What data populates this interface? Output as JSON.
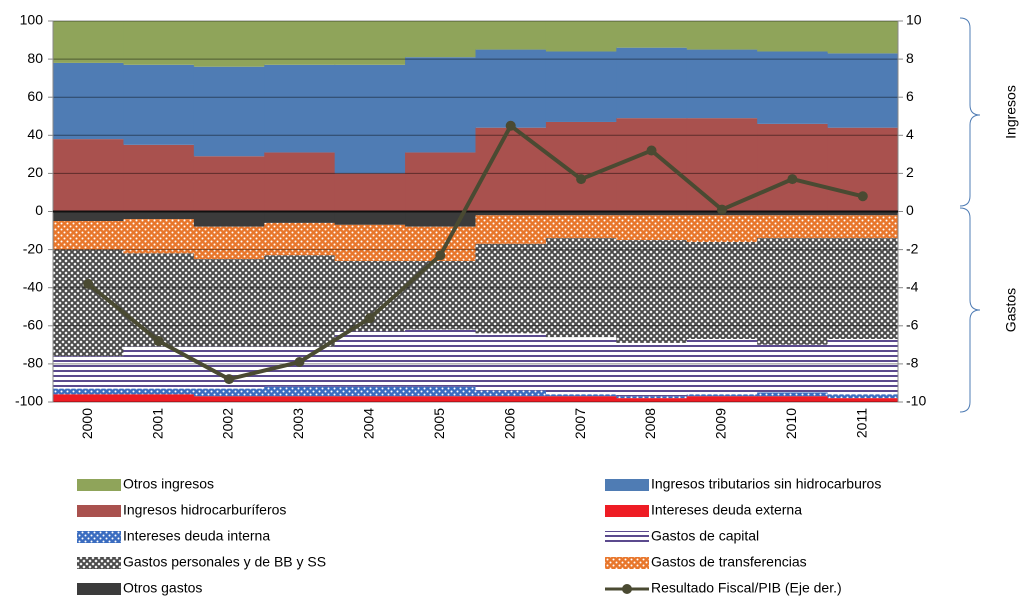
{
  "chart_data": {
    "type": "bar",
    "stacked": true,
    "categories": [
      "2000",
      "2001",
      "2002",
      "2003",
      "2004",
      "2005",
      "2006",
      "2007",
      "2008",
      "2009",
      "2010",
      "2011"
    ],
    "ylim": [
      -100,
      100
    ],
    "yticks": [
      -100,
      -80,
      -60,
      -40,
      -20,
      0,
      20,
      40,
      60,
      80,
      100
    ],
    "y2lim": [
      -10,
      10
    ],
    "y2ticks": [
      -10,
      -8,
      -6,
      -4,
      -2,
      0,
      2,
      4,
      6,
      8,
      10
    ],
    "grid": true,
    "annotations": [
      "Ingresos",
      "Gastos"
    ],
    "series": [
      {
        "name": "Otros gastos",
        "color": "#3b3b3b",
        "pattern": "solid",
        "values": [
          -5,
          -4,
          -8,
          -6,
          -7,
          -8,
          -2,
          -2,
          -2,
          -2,
          -2,
          -2
        ]
      },
      {
        "name": "Gastos de transferencias",
        "color": "#e8762b",
        "pattern": "dots",
        "values": [
          -15,
          -18,
          -17,
          -17,
          -19,
          -18,
          -15,
          -12,
          -13,
          -14,
          -12,
          -12
        ]
      },
      {
        "name": "Gastos personales y de BB  y SS",
        "color": "#4a4a4a",
        "pattern": "crosshatch",
        "values": [
          -56,
          -49,
          -46,
          -48,
          -37,
          -36,
          -47,
          -52,
          -54,
          -51,
          -56,
          -53
        ]
      },
      {
        "name": "Gastos de capital",
        "color": "#5b4a8e",
        "pattern": "stripes",
        "values": [
          -17,
          -22,
          -22,
          -21,
          -29,
          -30,
          -30,
          -30,
          -28,
          -29,
          -25,
          -29
        ]
      },
      {
        "name": "Intereses deuda interna",
        "color": "#3a6cc0",
        "pattern": "dots",
        "values": [
          -3,
          -3,
          -4,
          -5,
          -5,
          -5,
          -3,
          -1,
          -1,
          -1,
          -2,
          -2
        ]
      },
      {
        "name": "Intereses deuda externa",
        "color": "#ee1c24",
        "pattern": "solid",
        "values": [
          -4,
          -4,
          -3,
          -3,
          -3,
          -3,
          -3,
          -3,
          -2,
          -3,
          -3,
          -2
        ]
      },
      {
        "name": "Ingresos hidrocarburíferos",
        "color": "#a9514e",
        "pattern": "solid",
        "values": [
          38,
          35,
          29,
          31,
          20,
          31,
          44,
          47,
          49,
          49,
          46,
          44
        ]
      },
      {
        "name": "Ingresos tributarios sin hidrocarburos",
        "color": "#4f7cb4",
        "pattern": "solid",
        "values": [
          40,
          42,
          47,
          46,
          57,
          50,
          41,
          37,
          37,
          36,
          38,
          39
        ]
      },
      {
        "name": "Otros ingresos",
        "color": "#8fa45a",
        "pattern": "solid",
        "values": [
          22,
          23,
          24,
          23,
          23,
          19,
          15,
          16,
          14,
          15,
          16,
          17
        ]
      },
      {
        "name": "Resultado Fiscal/PIB (Eje der.)",
        "color": "#4a4a32",
        "type": "line",
        "axis": "y2",
        "values": [
          -3.8,
          -6.8,
          -8.8,
          -7.9,
          -5.6,
          -2.3,
          4.5,
          1.7,
          3.2,
          0.1,
          1.7,
          0.8
        ]
      }
    ]
  }
}
